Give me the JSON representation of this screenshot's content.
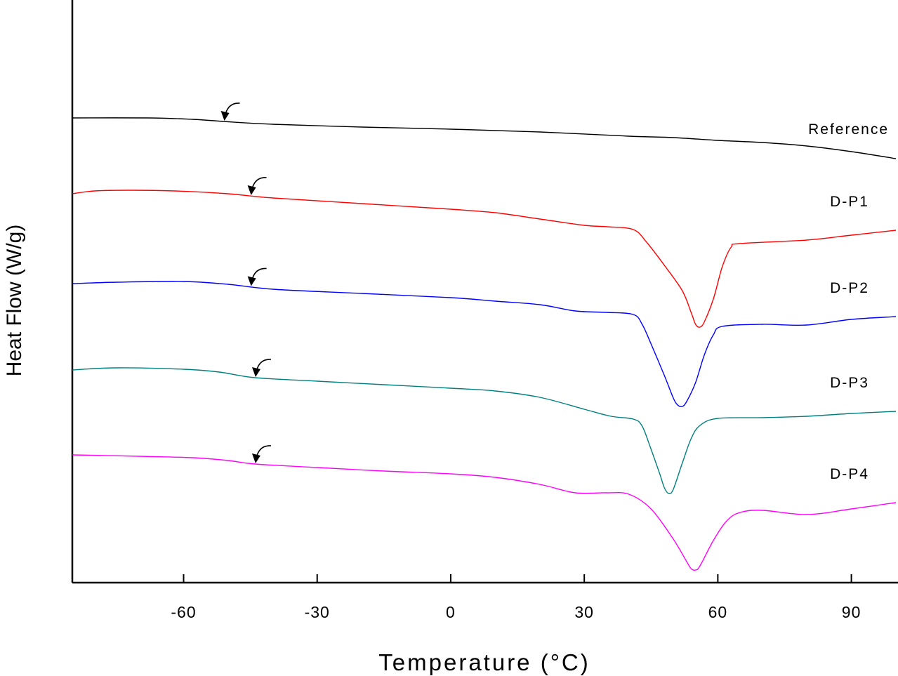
{
  "chart_data": {
    "type": "line",
    "xlabel": "Temperature (°C)",
    "ylabel": "Heat Flow (W/g)",
    "xlim": [
      -85,
      100
    ],
    "x_ticks": [
      -60,
      -30,
      0,
      30,
      60,
      90
    ],
    "y_ticks_shown": false,
    "grid": false,
    "legend": "none (series labeled inline at right)",
    "series": [
      {
        "name": "Reference",
        "color": "#000000",
        "tg_arrow_x": -51,
        "points": [
          [
            -85,
            168
          ],
          [
            -68,
            168
          ],
          [
            -58,
            170
          ],
          [
            -51,
            173
          ],
          [
            -40,
            177
          ],
          [
            -20,
            181
          ],
          [
            0,
            184
          ],
          [
            20,
            188
          ],
          [
            40,
            194
          ],
          [
            50,
            196
          ],
          [
            60,
            200
          ],
          [
            70,
            203
          ],
          [
            80,
            208
          ],
          [
            90,
            216
          ],
          [
            100,
            226
          ]
        ]
      },
      {
        "name": "D-P1",
        "color": "#ff0000",
        "tg_arrow_x": -45,
        "points": [
          [
            -85,
            276
          ],
          [
            -80,
            272
          ],
          [
            -72,
            271
          ],
          [
            -62,
            272
          ],
          [
            -50,
            276
          ],
          [
            -40,
            282
          ],
          [
            -20,
            290
          ],
          [
            0,
            298
          ],
          [
            10,
            303
          ],
          [
            20,
            312
          ],
          [
            30,
            321
          ],
          [
            35,
            323
          ],
          [
            41,
            327
          ],
          [
            44,
            345
          ],
          [
            48,
            378
          ],
          [
            52,
            414
          ],
          [
            54,
            445
          ],
          [
            55,
            462
          ],
          [
            56,
            466
          ],
          [
            57,
            458
          ],
          [
            59,
            426
          ],
          [
            61,
            380
          ],
          [
            63,
            352
          ],
          [
            65,
            347
          ],
          [
            80,
            342
          ],
          [
            90,
            335
          ],
          [
            100,
            328
          ]
        ]
      },
      {
        "name": "D-P2",
        "color": "#0000ff",
        "tg_arrow_x": -45,
        "points": [
          [
            -85,
            404
          ],
          [
            -75,
            402
          ],
          [
            -60,
            401
          ],
          [
            -50,
            405
          ],
          [
            -40,
            412
          ],
          [
            -20,
            418
          ],
          [
            0,
            424
          ],
          [
            10,
            429
          ],
          [
            20,
            434
          ],
          [
            28,
            443
          ],
          [
            35,
            445
          ],
          [
            41,
            448
          ],
          [
            43,
            462
          ],
          [
            45,
            490
          ],
          [
            48,
            535
          ],
          [
            50,
            567
          ],
          [
            51,
            577
          ],
          [
            52,
            579
          ],
          [
            53,
            572
          ],
          [
            55,
            545
          ],
          [
            57,
            505
          ],
          [
            59,
            477
          ],
          [
            61,
            465
          ],
          [
            70,
            462
          ],
          [
            80,
            463
          ],
          [
            90,
            455
          ],
          [
            100,
            451
          ]
        ]
      },
      {
        "name": "D-P3",
        "color": "#007f7f",
        "tg_arrow_x": -44,
        "points": [
          [
            -85,
            527
          ],
          [
            -75,
            524
          ],
          [
            -60,
            526
          ],
          [
            -52,
            530
          ],
          [
            -44,
            538
          ],
          [
            -30,
            543
          ],
          [
            -15,
            548
          ],
          [
            0,
            553
          ],
          [
            10,
            557
          ],
          [
            20,
            566
          ],
          [
            30,
            583
          ],
          [
            36,
            593
          ],
          [
            41,
            597
          ],
          [
            43,
            607
          ],
          [
            45,
            640
          ],
          [
            47,
            676
          ],
          [
            48,
            695
          ],
          [
            49,
            703
          ],
          [
            50,
            697
          ],
          [
            52,
            660
          ],
          [
            54,
            625
          ],
          [
            56,
            606
          ],
          [
            60,
            596
          ],
          [
            70,
            595
          ],
          [
            80,
            593
          ],
          [
            90,
            589
          ],
          [
            100,
            586
          ]
        ]
      },
      {
        "name": "D-P4",
        "color": "#ff00ff",
        "tg_arrow_x": -44,
        "points": [
          [
            -85,
            648
          ],
          [
            -70,
            650
          ],
          [
            -58,
            652
          ],
          [
            -50,
            656
          ],
          [
            -44,
            661
          ],
          [
            -30,
            666
          ],
          [
            -15,
            671
          ],
          [
            0,
            675
          ],
          [
            10,
            680
          ],
          [
            20,
            690
          ],
          [
            28,
            702
          ],
          [
            35,
            702
          ],
          [
            40,
            704
          ],
          [
            45,
            725
          ],
          [
            50,
            768
          ],
          [
            53,
            800
          ],
          [
            54,
            810
          ],
          [
            55,
            812
          ],
          [
            56,
            806
          ],
          [
            59,
            770
          ],
          [
            62,
            742
          ],
          [
            65,
            730
          ],
          [
            70,
            727
          ],
          [
            80,
            733
          ],
          [
            90,
            725
          ],
          [
            100,
            716
          ]
        ]
      }
    ]
  },
  "marker": {
    "tg_arrow_icon": "curved-arrow-icon"
  }
}
